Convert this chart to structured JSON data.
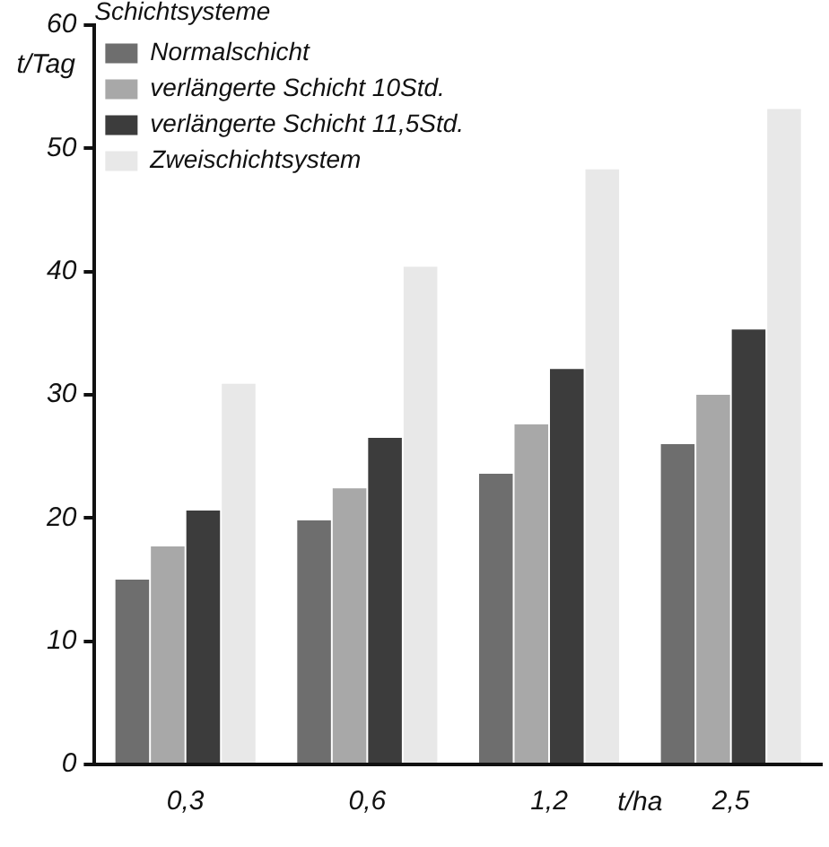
{
  "chart_data": {
    "type": "bar",
    "xlabel": "t/ha",
    "ylabel": "t/Tag",
    "legend_title": "Schichtsysteme",
    "categories": [
      "0,3",
      "0,6",
      "1,2",
      "2,5"
    ],
    "series": [
      {
        "name": "Normalschicht",
        "color": "#6e6e6e",
        "values": [
          15.0,
          19.8,
          23.6,
          26.0
        ]
      },
      {
        "name": "verlängerte Schicht 10Std.",
        "color": "#a8a8a8",
        "values": [
          17.7,
          22.4,
          27.6,
          30.0
        ]
      },
      {
        "name": "verlängerte Schicht 11,5Std.",
        "color": "#3c3c3c",
        "values": [
          20.6,
          26.5,
          32.1,
          35.3
        ]
      },
      {
        "name": "Zweischichtsystem",
        "color": "#e8e8e8",
        "values": [
          30.9,
          40.4,
          48.3,
          53.2
        ]
      }
    ],
    "ylim": [
      0,
      60
    ],
    "yticks": [
      0,
      10,
      20,
      30,
      40,
      50,
      60
    ],
    "grid": false,
    "legend": "top left"
  }
}
